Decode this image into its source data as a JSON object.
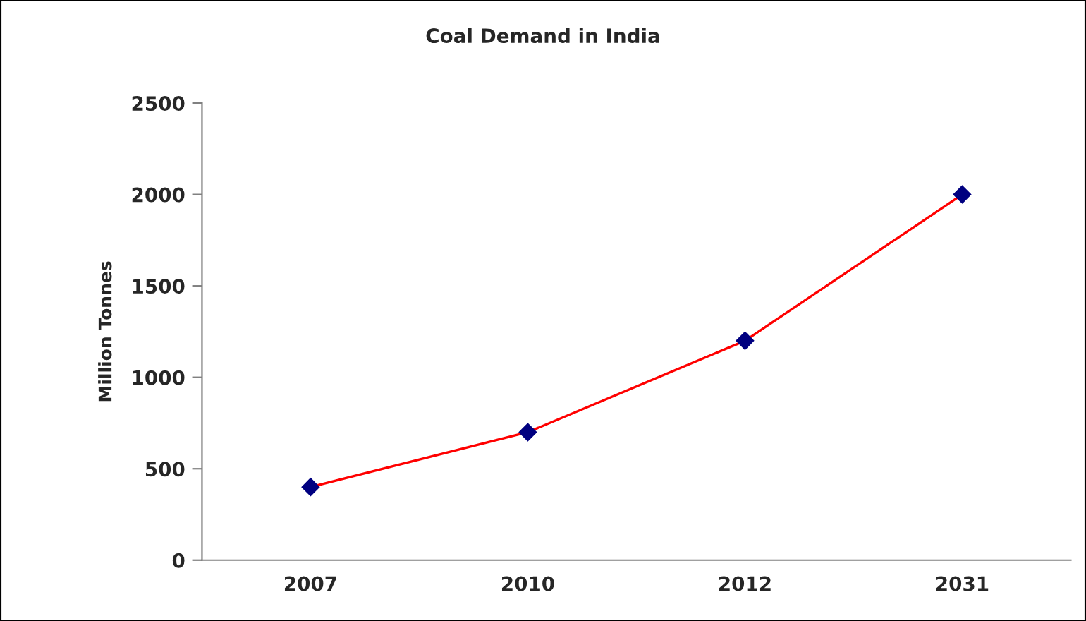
{
  "chart_data": {
    "type": "line",
    "title": "Coal Demand in India",
    "ylabel": "Million Tonnes",
    "categories": [
      "2007",
      "2010",
      "2012",
      "2031"
    ],
    "series": [
      {
        "color": "#ff0000",
        "values": [
          400,
          700,
          1200,
          2000
        ]
      }
    ],
    "ylim": [
      0,
      2500
    ],
    "yticks": [
      0,
      500,
      1000,
      1500,
      2000,
      2500
    ],
    "grid": false,
    "legend": false,
    "marker": "diamond",
    "line_style": "solid"
  }
}
